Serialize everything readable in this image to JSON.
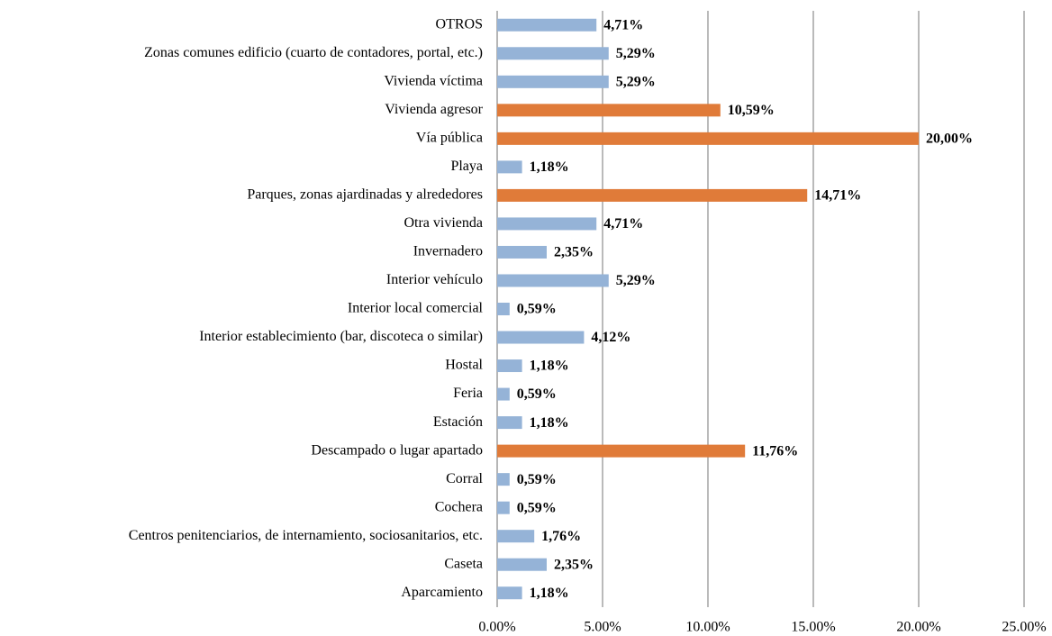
{
  "chart_data": {
    "type": "hbar",
    "categories": [
      "OTROS",
      "Zonas comunes edificio (cuarto de contadores, portal, etc.)",
      "Vivienda víctima",
      "Vivienda agresor",
      "Vía pública",
      "Playa",
      "Parques, zonas ajardinadas y alrededores",
      "Otra vivienda",
      "Invernadero",
      "Interior vehículo",
      "Interior local comercial",
      "Interior establecimiento (bar, discoteca o similar)",
      "Hostal",
      "Feria",
      "Estación",
      "Descampado o lugar apartado",
      "Corral",
      "Cochera",
      "Centros penitenciarios, de internamiento, sociosanitarios, etc.",
      "Caseta",
      "Aparcamiento"
    ],
    "values": [
      4.71,
      5.29,
      5.29,
      10.59,
      20.0,
      1.18,
      14.71,
      4.71,
      2.35,
      5.29,
      0.59,
      4.12,
      1.18,
      0.59,
      1.18,
      11.76,
      0.59,
      0.59,
      1.76,
      2.35,
      1.18
    ],
    "value_labels": [
      "4,71%",
      "5,29%",
      "5,29%",
      "10,59%",
      "20,00%",
      "1,18%",
      "14,71%",
      "4,71%",
      "2,35%",
      "5,29%",
      "0,59%",
      "4,12%",
      "1,18%",
      "0,59%",
      "1,18%",
      "11,76%",
      "0,59%",
      "0,59%",
      "1,76%",
      "2,35%",
      "1,18%"
    ],
    "colors": [
      "#95b3d7",
      "#95b3d7",
      "#95b3d7",
      "#e07b39",
      "#e07b39",
      "#95b3d7",
      "#e07b39",
      "#95b3d7",
      "#95b3d7",
      "#95b3d7",
      "#95b3d7",
      "#95b3d7",
      "#95b3d7",
      "#95b3d7",
      "#95b3d7",
      "#e07b39",
      "#95b3d7",
      "#95b3d7",
      "#95b3d7",
      "#95b3d7",
      "#95b3d7"
    ],
    "xlim": [
      0,
      25
    ],
    "xticks": [
      {
        "value": 0,
        "label": "0.00%"
      },
      {
        "value": 5,
        "label": "5.00%"
      },
      {
        "value": 10,
        "label": "10.00%"
      },
      {
        "value": 15,
        "label": "15.00%"
      },
      {
        "value": 20,
        "label": "20.00%"
      },
      {
        "value": 25,
        "label": "25.00%"
      }
    ],
    "grid": true
  }
}
